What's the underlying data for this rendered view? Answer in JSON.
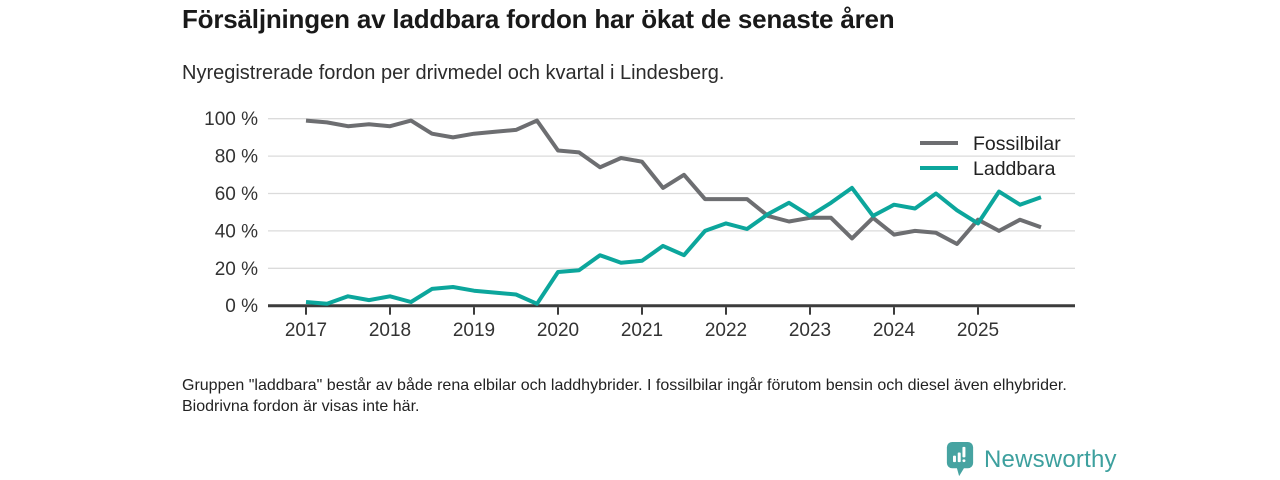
{
  "header": {
    "title": "Försäljningen av laddbara fordon har ökat de senaste åren",
    "subtitle": "Nyregistrerade fordon per drivmedel och kvartal i Lindesberg."
  },
  "chart_data": {
    "type": "line",
    "title": "Försäljningen av laddbara fordon har ökat de senaste åren",
    "subtitle": "Nyregistrerade fordon per drivmedel och kvartal i Lindesberg.",
    "x_unit": "quarter",
    "x_start": "2017 Q1",
    "x_end": "2025 Q4",
    "year_ticks": [
      "2017",
      "2018",
      "2019",
      "2020",
      "2021",
      "2022",
      "2023",
      "2024",
      "2025"
    ],
    "y_ticks": [
      {
        "value": 0,
        "label": "0 %"
      },
      {
        "value": 20,
        "label": "20 %"
      },
      {
        "value": 40,
        "label": "40 %"
      },
      {
        "value": 60,
        "label": "60 %"
      },
      {
        "value": 80,
        "label": "80 %"
      },
      {
        "value": 100,
        "label": "100 %"
      }
    ],
    "ylim": [
      0,
      100
    ],
    "grid": true,
    "legend_position": "top-right",
    "series": [
      {
        "name": "Fossilbilar",
        "color": "#6D6E71",
        "values": [
          99,
          98,
          96,
          97,
          96,
          99,
          92,
          90,
          92,
          93,
          94,
          99,
          83,
          82,
          74,
          79,
          77,
          63,
          70,
          57,
          57,
          57,
          48,
          45,
          47,
          47,
          36,
          47,
          38,
          40,
          39,
          33,
          46,
          40,
          46,
          42
        ]
      },
      {
        "name": "Laddbara",
        "color": "#0CA69C",
        "values": [
          2,
          1,
          5,
          3,
          5,
          2,
          9,
          10,
          8,
          7,
          6,
          1,
          18,
          19,
          27,
          23,
          24,
          32,
          27,
          40,
          44,
          41,
          49,
          55,
          48,
          55,
          63,
          48,
          54,
          52,
          60,
          51,
          44,
          61,
          54,
          58
        ]
      }
    ]
  },
  "footer": {
    "note": "Gruppen \"laddbara\" består av både rena elbilar och laddhybrider. I fossilbilar ingår förutom bensin och diesel även elhybrider. Biodrivna fordon är visas inte här.",
    "logo_text": "Newsworthy",
    "logo_color": "#3DA09E"
  }
}
